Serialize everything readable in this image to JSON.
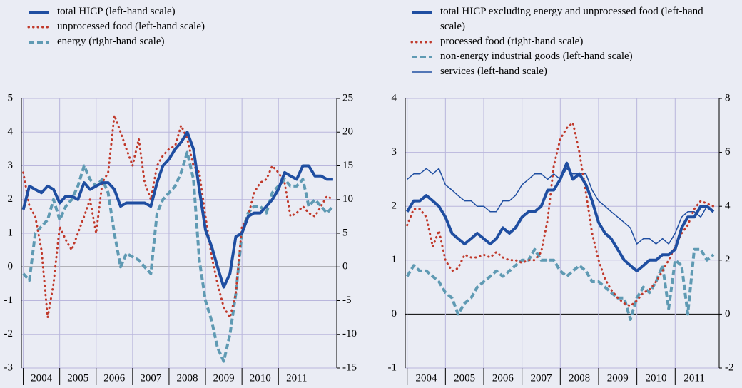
{
  "chart_data": [
    {
      "type": "line",
      "x": [
        2004,
        2004.17,
        2004.33,
        2004.5,
        2004.67,
        2004.83,
        2005,
        2005.17,
        2005.33,
        2005.5,
        2005.67,
        2005.83,
        2006,
        2006.17,
        2006.33,
        2006.5,
        2006.67,
        2006.83,
        2007,
        2007.17,
        2007.33,
        2007.5,
        2007.67,
        2007.83,
        2008,
        2008.17,
        2008.33,
        2008.5,
        2008.67,
        2008.83,
        2009,
        2009.17,
        2009.33,
        2009.5,
        2009.67,
        2009.83,
        2010,
        2010.17,
        2010.33,
        2010.5,
        2010.67,
        2010.83,
        2011,
        2011.17,
        2011.33,
        2011.5,
        2011.67,
        2011.83,
        2012,
        2012.17,
        2012.33,
        2012.5
      ],
      "xlim": [
        2003.95,
        2012.6
      ],
      "xticks": [
        2004,
        2005,
        2006,
        2007,
        2008,
        2009,
        2010,
        2011
      ],
      "ylim": [
        -3,
        5
      ],
      "yticks": [
        -3,
        -2,
        -1,
        0,
        1,
        2,
        3,
        4,
        5
      ],
      "y2lim": [
        -15,
        25
      ],
      "y2ticks": [
        -15,
        -10,
        -5,
        0,
        5,
        10,
        15,
        20,
        25
      ],
      "grid": true,
      "series": [
        {
          "name": "total HICP (left-hand scale)",
          "color": "#1f4ea1",
          "line_style": "solid",
          "line_width": 4,
          "values": [
            1.7,
            2.4,
            2.3,
            2.2,
            2.4,
            2.3,
            1.9,
            2.1,
            2.1,
            2.0,
            2.5,
            2.3,
            2.4,
            2.5,
            2.5,
            2.3,
            1.8,
            1.9,
            1.9,
            1.9,
            1.9,
            1.8,
            2.5,
            3.0,
            3.2,
            3.5,
            3.7,
            4.0,
            3.5,
            2.3,
            1.1,
            0.6,
            0.0,
            -0.6,
            -0.2,
            0.9,
            1.0,
            1.5,
            1.6,
            1.6,
            1.8,
            2.0,
            2.3,
            2.8,
            2.7,
            2.6,
            3.0,
            3.0,
            2.7,
            2.7,
            2.6,
            2.6
          ]
        },
        {
          "name": "unprocessed food (left-hand scale)",
          "color": "#c0392b",
          "line_style": "dotted",
          "line_width": 3,
          "values": [
            2.8,
            1.8,
            1.5,
            0.5,
            -1.5,
            -0.5,
            1.2,
            0.8,
            0.5,
            1.0,
            1.5,
            2.0,
            1.0,
            2.5,
            2.8,
            4.5,
            4.0,
            3.5,
            3.0,
            3.8,
            2.5,
            2.0,
            3.0,
            3.3,
            3.5,
            3.6,
            4.2,
            3.8,
            3.0,
            2.8,
            1.5,
            0.3,
            -0.5,
            -1.2,
            -1.5,
            -0.8,
            1.2,
            1.5,
            2.2,
            2.5,
            2.6,
            3.0,
            2.8,
            2.5,
            1.5,
            1.6,
            1.8,
            1.6,
            1.5,
            1.8,
            2.1,
            2.0
          ]
        },
        {
          "name": "energy (right-hand scale)",
          "color": "#5f9ab3",
          "line_style": "dashed",
          "line_width": 4,
          "axis": "y2",
          "values": [
            -1,
            -2,
            5,
            6,
            7,
            10,
            7,
            9,
            10,
            12,
            15,
            13,
            12,
            13,
            11,
            5,
            0,
            2,
            1.5,
            1,
            0,
            -1,
            8,
            10,
            11,
            12,
            14,
            17,
            13,
            1,
            -5,
            -8,
            -12,
            -14,
            -10,
            -4,
            5,
            8,
            9,
            9,
            8,
            11,
            12,
            13,
            12,
            12,
            13,
            9,
            10,
            9,
            8,
            9
          ]
        }
      ]
    },
    {
      "type": "line",
      "x": [
        2004,
        2004.17,
        2004.33,
        2004.5,
        2004.67,
        2004.83,
        2005,
        2005.17,
        2005.33,
        2005.5,
        2005.67,
        2005.83,
        2006,
        2006.17,
        2006.33,
        2006.5,
        2006.67,
        2006.83,
        2007,
        2007.17,
        2007.33,
        2007.5,
        2007.67,
        2007.83,
        2008,
        2008.17,
        2008.33,
        2008.5,
        2008.67,
        2008.83,
        2009,
        2009.17,
        2009.33,
        2009.5,
        2009.67,
        2009.83,
        2010,
        2010.17,
        2010.33,
        2010.5,
        2010.67,
        2010.83,
        2011,
        2011.17,
        2011.33,
        2011.5,
        2011.67,
        2011.83,
        2012
      ],
      "xlim": [
        2003.95,
        2012.15
      ],
      "xticks": [
        2004,
        2005,
        2006,
        2007,
        2008,
        2009,
        2010,
        2011
      ],
      "ylim": [
        -1,
        4
      ],
      "yticks": [
        -1,
        0,
        1,
        2,
        3,
        4
      ],
      "y2lim": [
        -2,
        8
      ],
      "y2ticks": [
        -2,
        0,
        2,
        4,
        6,
        8
      ],
      "grid": true,
      "series": [
        {
          "name": "total HICP excluding energy and unprocessed food (left-hand scale)",
          "color": "#1f4ea1",
          "line_style": "solid",
          "line_width": 4,
          "values": [
            1.9,
            2.1,
            2.1,
            2.2,
            2.1,
            2.0,
            1.8,
            1.5,
            1.4,
            1.3,
            1.4,
            1.5,
            1.4,
            1.3,
            1.4,
            1.6,
            1.5,
            1.6,
            1.8,
            1.9,
            1.9,
            2.0,
            2.3,
            2.3,
            2.5,
            2.8,
            2.5,
            2.6,
            2.4,
            2.1,
            1.7,
            1.5,
            1.4,
            1.2,
            1.0,
            0.9,
            0.8,
            0.9,
            1.0,
            1.0,
            1.1,
            1.1,
            1.2,
            1.6,
            1.8,
            1.8,
            2.0,
            2.0,
            1.9
          ]
        },
        {
          "name": "processed food (right-hand scale)",
          "color": "#c0392b",
          "line_style": "dotted",
          "line_width": 3,
          "axis": "y2",
          "values": [
            3.3,
            3.9,
            3.9,
            3.6,
            2.5,
            3.1,
            2.0,
            1.6,
            1.7,
            2.2,
            2.1,
            2.1,
            2.2,
            2.1,
            2.3,
            2.1,
            2.0,
            2.0,
            1.9,
            2.0,
            2.0,
            2.3,
            3.5,
            5.5,
            6.5,
            6.9,
            7.1,
            6.0,
            4.5,
            3.0,
            2.0,
            1.3,
            0.9,
            0.6,
            0.4,
            0.3,
            0.5,
            0.8,
            0.9,
            1.2,
            1.6,
            2.0,
            2.5,
            3.0,
            3.3,
            3.9,
            4.2,
            4.1,
            4.0
          ]
        },
        {
          "name": "non-energy industrial goods (left-hand scale)",
          "color": "#5f9ab3",
          "line_style": "dashed",
          "line_width": 4,
          "values": [
            0.7,
            0.9,
            0.8,
            0.8,
            0.7,
            0.6,
            0.4,
            0.3,
            0.0,
            0.2,
            0.3,
            0.5,
            0.6,
            0.7,
            0.8,
            0.7,
            0.8,
            0.9,
            1.0,
            1.0,
            1.2,
            1.0,
            1.0,
            1.0,
            0.8,
            0.7,
            0.8,
            0.9,
            0.8,
            0.6,
            0.6,
            0.5,
            0.4,
            0.3,
            0.3,
            -0.1,
            0.3,
            0.5,
            0.4,
            0.6,
            0.9,
            0.1,
            1.0,
            0.9,
            0.0,
            1.2,
            1.2,
            1.0,
            1.1
          ]
        },
        {
          "name": "services (left-hand scale)",
          "color": "#1f4ea1",
          "line_style": "solid",
          "line_width": 1.5,
          "values": [
            2.5,
            2.6,
            2.6,
            2.7,
            2.6,
            2.7,
            2.4,
            2.3,
            2.2,
            2.1,
            2.1,
            2.0,
            2.0,
            1.9,
            1.9,
            2.1,
            2.1,
            2.2,
            2.4,
            2.5,
            2.6,
            2.6,
            2.5,
            2.6,
            2.5,
            2.7,
            2.6,
            2.6,
            2.6,
            2.3,
            2.1,
            2.0,
            1.9,
            1.8,
            1.7,
            1.6,
            1.3,
            1.4,
            1.4,
            1.3,
            1.4,
            1.3,
            1.5,
            1.8,
            1.9,
            1.9,
            1.8,
            2.0,
            1.9
          ]
        }
      ]
    }
  ]
}
